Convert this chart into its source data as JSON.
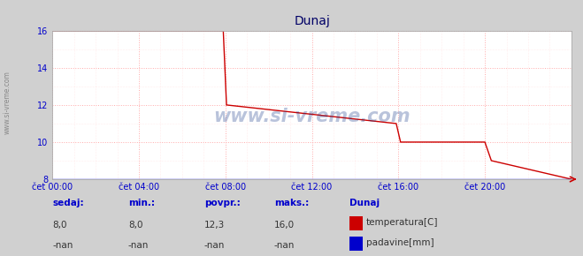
{
  "title": "Dunaj",
  "bg_color": "#d0d0d0",
  "plot_bg_color": "#ffffff",
  "grid_color_major": "#ffaaaa",
  "grid_color_minor": "#ffdddd",
  "line_color_temp": "#cc0000",
  "line_color_precip": "#0000cc",
  "xlabel_color": "#0000cc",
  "ylabel_color": "#0000cc",
  "title_color": "#000066",
  "ylim": [
    8,
    16
  ],
  "yticks": [
    8,
    10,
    12,
    14,
    16
  ],
  "xtick_hours": [
    0,
    4,
    8,
    12,
    16,
    20
  ],
  "xtick_labels": [
    "čet 00:00",
    "čet 04:00",
    "čet 08:00",
    "čet 12:00",
    "čet 16:00",
    "čet 20:00"
  ],
  "temp_x_hours": [
    0,
    7.9,
    7.9,
    8.05,
    8.05,
    15.9,
    15.9,
    16.1,
    16.1,
    20.0,
    20.0,
    20.3,
    20.3,
    24.0
  ],
  "temp_y": [
    16,
    16,
    16,
    12,
    12,
    11,
    11,
    10,
    10,
    10,
    10,
    9,
    9,
    8
  ],
  "precip_y": 8,
  "sedaj": "8,0",
  "min_val": "8,0",
  "povpr": "12,3",
  "maks": "16,0",
  "legend_title": "Dunaj",
  "legend_temp": "temperatura[C]",
  "legend_precip": "padavine[mm]",
  "footer_bold_color": "#0000cc",
  "footer_value_color": "#333333",
  "watermark": "www.si-vreme.com",
  "watermark_color": "#1a3a8a",
  "watermark_alpha": 0.3,
  "left_label": "www.si-vreme.com",
  "left_label_color": "#888888"
}
